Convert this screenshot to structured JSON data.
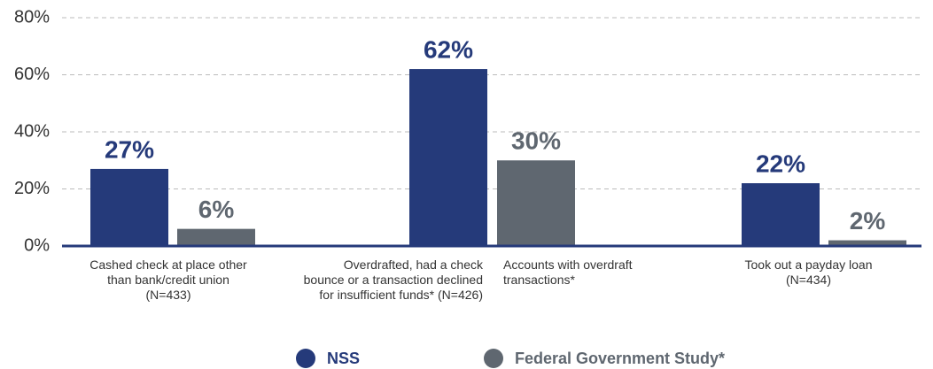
{
  "chart_data": {
    "type": "bar",
    "categories": [
      "Cashed check at place other than bank/credit union (N=433)",
      "Overdrafted, had a check bounce or a transaction declined for insufficient funds* (N=426)",
      "Took out a payday loan (N=434)"
    ],
    "annotations": [
      {
        "text": "Accounts with overdraft transactions*"
      }
    ],
    "series": [
      {
        "name": "NSS",
        "color": "#253a7a",
        "values": [
          27,
          62,
          22
        ],
        "value_labels": [
          "27%",
          "62%",
          "22%"
        ]
      },
      {
        "name": "Federal Government Study*",
        "color": "#5f6770",
        "values": [
          6,
          30,
          2
        ],
        "value_labels": [
          "6%",
          "30%",
          "2%"
        ]
      }
    ],
    "ylim": [
      0,
      80
    ],
    "yticks": [
      {
        "value": 0,
        "label": "0%"
      },
      {
        "value": 20,
        "label": "20%"
      },
      {
        "value": 40,
        "label": "40%"
      },
      {
        "value": 60,
        "label": "60%"
      },
      {
        "value": 80,
        "label": "80%"
      }
    ],
    "grid": true,
    "legend": "bottom"
  }
}
